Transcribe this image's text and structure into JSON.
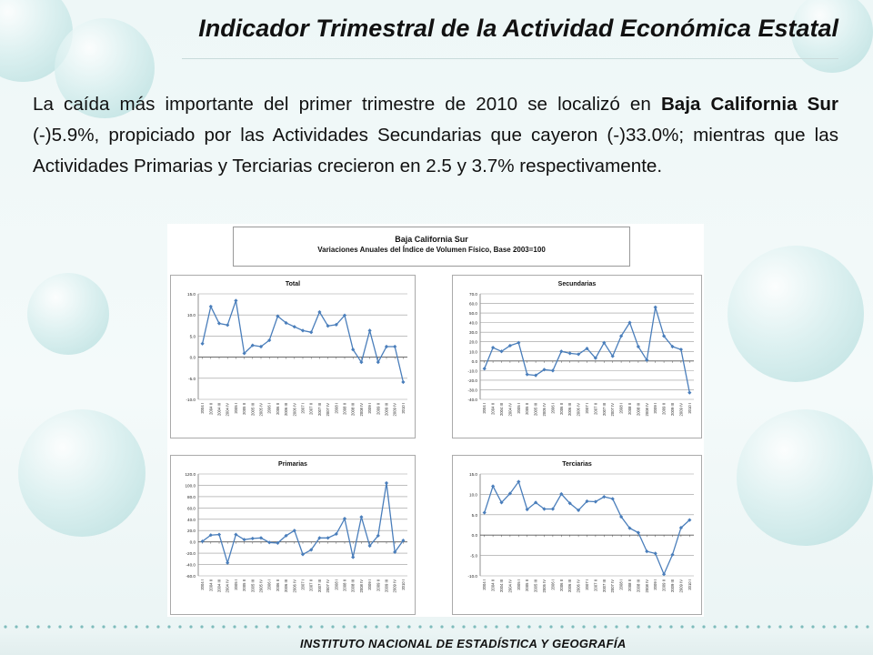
{
  "header": {
    "title": "Indicador Trimestral de la Actividad Económica Estatal"
  },
  "paragraph": {
    "p1": "La caída más importante del primer trimestre de 2010 se localizó en ",
    "p2": "Baja California Sur",
    "p3": " (-)5.9%, propiciado por las Actividades Secundarias que cayeron (-)33.0%; mientras que las Actividades Primarias y Terciarias crecieron en 2.5 y 3.7% respectivamente."
  },
  "panel": {
    "title": "Baja California Sur",
    "subtitle": "Variaciones Anuales del Índice de Volumen Físico, Base 2003=100"
  },
  "footer": {
    "text": "INSTITUTO NACIONAL DE ESTADÍSTICA Y GEOGRAFÍA"
  },
  "colors": {
    "line": "#4a7ebb",
    "marker": "#4a7ebb"
  },
  "chart_data": [
    {
      "type": "line",
      "title": "Total",
      "ylim": [
        -10,
        15
      ],
      "yticks": [
        -10,
        -5,
        0,
        5,
        10,
        15
      ],
      "yticklabels": [
        "-10.0",
        "-5.0",
        "0.0",
        "5.0",
        "10.0",
        "15.0"
      ],
      "categories": [
        "2004 I",
        "2004 II",
        "2004 III",
        "2004 IV",
        "2005 I",
        "2005 II",
        "2005 III",
        "2005 IV",
        "2006 I",
        "2006 II",
        "2006 III",
        "2006 IV",
        "2007 I",
        "2007 II",
        "2007 III",
        "2007 IV",
        "2008 I",
        "2008 II",
        "2008 III",
        "2008 IV",
        "2009 I",
        "2009 II",
        "2009 III",
        "2009 IV",
        "2010 I"
      ],
      "values": [
        3.2,
        12.0,
        8.0,
        7.6,
        13.4,
        0.9,
        2.8,
        2.5,
        4.0,
        9.7,
        8.1,
        7.2,
        6.3,
        5.9,
        10.7,
        7.4,
        7.7,
        9.9,
        1.8,
        -1.2,
        6.3,
        -1.2,
        2.5,
        2.5,
        -5.9
      ]
    },
    {
      "type": "line",
      "title": "Secundarias",
      "ylim": [
        -40,
        70
      ],
      "yticks": [
        -40,
        -30,
        -20,
        -10,
        0,
        10,
        20,
        30,
        40,
        50,
        60,
        70
      ],
      "yticklabels": [
        "-40.0",
        "-30.0",
        "-20.0",
        "-10.0",
        "0.0",
        "10.0",
        "20.0",
        "30.0",
        "40.0",
        "50.0",
        "60.0",
        "70.0"
      ],
      "categories": [
        "2004 I",
        "2004 II",
        "2004 III",
        "2004 IV",
        "2005 I",
        "2005 II",
        "2005 III",
        "2005 IV",
        "2006 I",
        "2006 II",
        "2006 III",
        "2006 IV",
        "2007 I",
        "2007 II",
        "2007 III",
        "2007 IV",
        "2008 I",
        "2008 II",
        "2008 III",
        "2008 IV",
        "2009 I",
        "2009 II",
        "2009 III",
        "2009 IV",
        "2010 I"
      ],
      "values": [
        -8,
        14,
        10,
        16,
        19,
        -14,
        -15,
        -9,
        -10,
        10,
        8,
        7,
        13,
        3,
        19,
        5,
        26,
        40,
        15,
        1,
        56,
        26,
        15,
        12,
        -33
      ]
    },
    {
      "type": "line",
      "title": "Primarias",
      "ylim": [
        -60,
        120
      ],
      "yticks": [
        -60,
        -40,
        -20,
        0,
        20,
        40,
        60,
        80,
        100,
        120
      ],
      "yticklabels": [
        "-60.0",
        "-40.0",
        "-20.0",
        "0.0",
        "20.0",
        "40.0",
        "60.0",
        "80.0",
        "100.0",
        "120.0"
      ],
      "categories": [
        "2004 I",
        "2004 II",
        "2004 III",
        "2004 IV",
        "2005 I",
        "2005 II",
        "2005 III",
        "2005 IV",
        "2006 I",
        "2006 II",
        "2006 III",
        "2006 IV",
        "2007 I",
        "2007 II",
        "2007 III",
        "2007 IV",
        "2008 I",
        "2008 II",
        "2008 III",
        "2008 IV",
        "2009 I",
        "2009 II",
        "2009 III",
        "2009 IV",
        "2010 I"
      ],
      "values": [
        1,
        12,
        13,
        -37,
        13,
        4,
        6,
        7,
        -1,
        -2,
        11,
        20,
        -22,
        -14,
        7,
        7,
        14,
        41,
        -27,
        44,
        -7,
        11,
        104,
        -18,
        2.5
      ]
    },
    {
      "type": "line",
      "title": "Terciarias",
      "ylim": [
        -10,
        15
      ],
      "yticks": [
        -10,
        -5,
        0,
        5,
        10,
        15
      ],
      "yticklabels": [
        "-10.0",
        "-5.0",
        "0.0",
        "5.0",
        "10.0",
        "15.0"
      ],
      "categories": [
        "2004 I",
        "2004 II",
        "2004 III",
        "2004 IV",
        "2005 I",
        "2005 II",
        "2005 III",
        "2005 IV",
        "2006 I",
        "2006 II",
        "2006 III",
        "2006 IV",
        "2007 I",
        "2007 II",
        "2007 III",
        "2007 IV",
        "2008 I",
        "2008 II",
        "2008 III",
        "2008 IV",
        "2009 I",
        "2009 II",
        "2009 III",
        "2009 IV",
        "2010 I"
      ],
      "values": [
        5.5,
        12.0,
        8.0,
        10.2,
        13.1,
        6.3,
        8.0,
        6.4,
        6.4,
        10.1,
        7.8,
        6.1,
        8.3,
        8.2,
        9.4,
        8.9,
        4.5,
        1.7,
        0.6,
        -4.0,
        -4.5,
        -9.6,
        -4.8,
        1.8,
        3.7
      ]
    }
  ]
}
